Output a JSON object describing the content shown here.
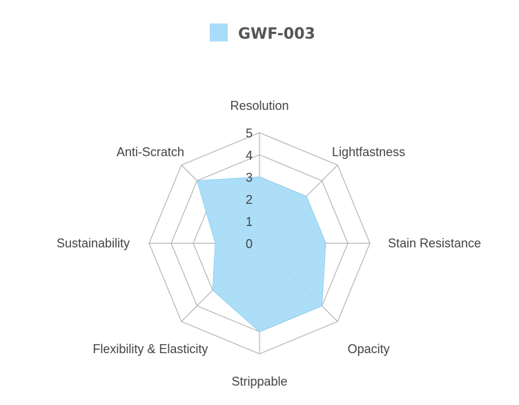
{
  "colors": {
    "series_fill": "#a9dcf8",
    "series_stroke": "#8fd0f4",
    "grid": "#b3b3b3",
    "text": "#444444",
    "legend_text": "#555555"
  },
  "chart_data": {
    "type": "radar",
    "title": "",
    "legend_position": "top-center",
    "grid": true,
    "radial_range": [
      0,
      5
    ],
    "ticks": [
      0,
      1,
      2,
      3,
      4,
      5
    ],
    "axes": [
      "Resolution",
      "Lightfastness",
      "Stain Resistance",
      "Opacity",
      "Strippable",
      "Flexibility & Elasticity",
      "Sustainability",
      "Anti-Scratch"
    ],
    "series": [
      {
        "name": "GWF-003",
        "values": [
          3,
          3,
          3,
          4,
          4,
          3,
          2,
          4
        ]
      }
    ]
  }
}
